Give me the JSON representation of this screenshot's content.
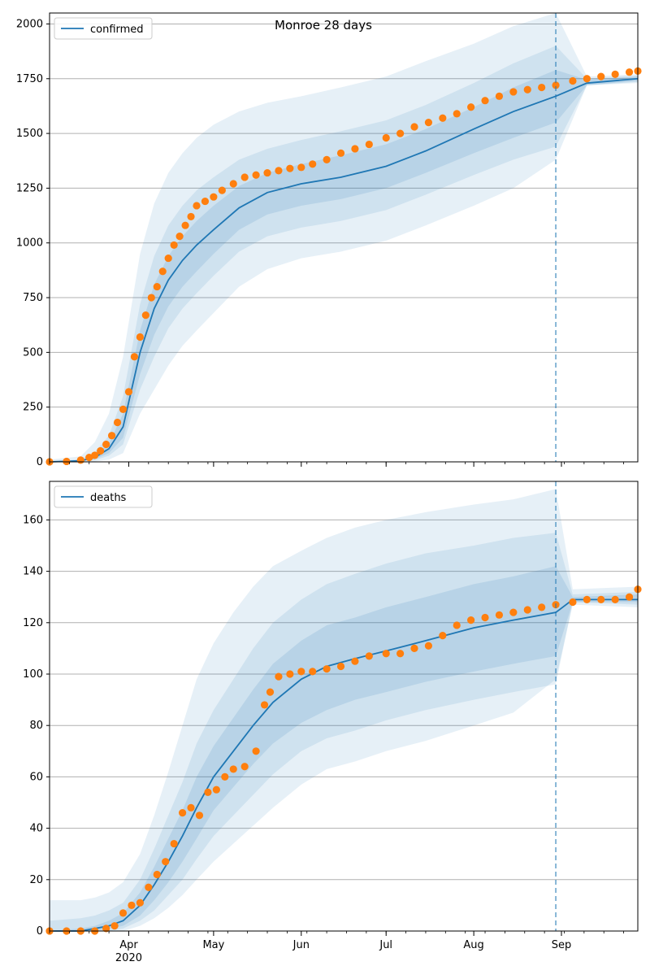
{
  "title": "Monroe 28 days",
  "colors": {
    "model_line": "#1f77b4",
    "observed": "#ff7f0e",
    "band": "#1f77b4",
    "grid": "#b0b0b0",
    "forecast_line": "#1f77b4"
  },
  "x_axis": {
    "date_range": [
      "2020-03-04",
      "2020-09-28"
    ],
    "month_ticks": [
      {
        "date": "2020-04-01",
        "label": "Apr",
        "sublabel": "2020"
      },
      {
        "date": "2020-05-01",
        "label": "May",
        "sublabel": ""
      },
      {
        "date": "2020-06-01",
        "label": "Jun",
        "sublabel": ""
      },
      {
        "date": "2020-07-01",
        "label": "Jul",
        "sublabel": ""
      },
      {
        "date": "2020-08-01",
        "label": "Aug",
        "sublabel": ""
      },
      {
        "date": "2020-09-01",
        "label": "Sep",
        "sublabel": ""
      }
    ],
    "forecast_start": "2020-08-30"
  },
  "chart_data": [
    {
      "type": "line",
      "series": [
        {
          "name": "confirmed",
          "role": "model median"
        },
        {
          "role": "observed",
          "marker": "circle"
        }
      ],
      "legend": {
        "label": "confirmed",
        "placement": "top-left"
      },
      "ylim": [
        0,
        2050
      ],
      "yticks": [
        0,
        250,
        500,
        750,
        1000,
        1250,
        1500,
        1750,
        2000
      ],
      "grid": "horizontal",
      "model": {
        "dates": [
          "2020-03-04",
          "2020-03-15",
          "2020-03-20",
          "2020-03-25",
          "2020-03-30",
          "2020-04-05",
          "2020-04-10",
          "2020-04-15",
          "2020-04-20",
          "2020-04-25",
          "2020-05-01",
          "2020-05-10",
          "2020-05-20",
          "2020-06-01",
          "2020-06-15",
          "2020-07-01",
          "2020-07-15",
          "2020-08-01",
          "2020-08-15",
          "2020-08-30",
          "2020-09-10",
          "2020-09-28"
        ],
        "median": [
          0,
          5,
          20,
          60,
          160,
          500,
          700,
          830,
          920,
          990,
          1060,
          1160,
          1230,
          1270,
          1300,
          1350,
          1420,
          1520,
          1600,
          1670,
          1730,
          1750
        ],
        "band_inner": [
          [
            0,
            3,
            12,
            40,
            110,
            400,
            580,
            710,
            800,
            870,
            950,
            1060,
            1130,
            1170,
            1200,
            1250,
            1320,
            1410,
            1480,
            1550,
            1720,
            1740
          ],
          [
            0,
            8,
            30,
            85,
            220,
            600,
            810,
            940,
            1030,
            1100,
            1170,
            1260,
            1320,
            1360,
            1400,
            1450,
            1520,
            1620,
            1710,
            1790,
            1745,
            1760
          ]
        ],
        "band_mid": [
          [
            0,
            2,
            8,
            28,
            80,
            330,
            480,
            610,
            700,
            770,
            850,
            960,
            1030,
            1070,
            1100,
            1150,
            1220,
            1310,
            1380,
            1440,
            1720,
            1735
          ],
          [
            0,
            12,
            45,
            120,
            300,
            720,
            940,
            1080,
            1170,
            1240,
            1300,
            1380,
            1430,
            1470,
            1510,
            1560,
            1630,
            1730,
            1820,
            1900,
            1750,
            1765
          ]
        ],
        "band_outer": [
          [
            0,
            0,
            2,
            10,
            40,
            220,
            330,
            440,
            530,
            600,
            680,
            800,
            880,
            930,
            960,
            1010,
            1080,
            1170,
            1250,
            1380,
            1720,
            1730
          ],
          [
            10,
            25,
            90,
            220,
            480,
            950,
            1180,
            1320,
            1410,
            1480,
            1540,
            1600,
            1640,
            1670,
            1710,
            1760,
            1830,
            1910,
            1990,
            2050,
            1760,
            1770
          ]
        ]
      },
      "observed": {
        "dates": [
          "2020-03-04",
          "2020-03-10",
          "2020-03-15",
          "2020-03-18",
          "2020-03-20",
          "2020-03-22",
          "2020-03-24",
          "2020-03-26",
          "2020-03-28",
          "2020-03-30",
          "2020-04-01",
          "2020-04-03",
          "2020-04-05",
          "2020-04-07",
          "2020-04-09",
          "2020-04-11",
          "2020-04-13",
          "2020-04-15",
          "2020-04-17",
          "2020-04-19",
          "2020-04-21",
          "2020-04-23",
          "2020-04-25",
          "2020-04-28",
          "2020-05-01",
          "2020-05-04",
          "2020-05-08",
          "2020-05-12",
          "2020-05-16",
          "2020-05-20",
          "2020-05-24",
          "2020-05-28",
          "2020-06-01",
          "2020-06-05",
          "2020-06-10",
          "2020-06-15",
          "2020-06-20",
          "2020-06-25",
          "2020-07-01",
          "2020-07-06",
          "2020-07-11",
          "2020-07-16",
          "2020-07-21",
          "2020-07-26",
          "2020-07-31",
          "2020-08-05",
          "2020-08-10",
          "2020-08-15",
          "2020-08-20",
          "2020-08-25",
          "2020-08-30",
          "2020-09-05",
          "2020-09-10",
          "2020-09-15",
          "2020-09-20",
          "2020-09-25",
          "2020-09-28"
        ],
        "values": [
          0,
          2,
          8,
          20,
          30,
          50,
          80,
          120,
          180,
          240,
          320,
          480,
          570,
          670,
          750,
          800,
          870,
          930,
          990,
          1030,
          1080,
          1120,
          1170,
          1190,
          1210,
          1240,
          1270,
          1300,
          1310,
          1320,
          1330,
          1340,
          1345,
          1360,
          1380,
          1410,
          1430,
          1450,
          1480,
          1500,
          1530,
          1550,
          1570,
          1590,
          1620,
          1650,
          1670,
          1690,
          1700,
          1710,
          1720,
          1740,
          1750,
          1760,
          1770,
          1780,
          1785
        ]
      }
    },
    {
      "type": "line",
      "series": [
        {
          "name": "deaths",
          "role": "model median"
        },
        {
          "role": "observed",
          "marker": "circle"
        }
      ],
      "legend": {
        "label": "deaths",
        "placement": "top-left"
      },
      "ylim": [
        0,
        175
      ],
      "yticks": [
        0,
        20,
        40,
        60,
        80,
        100,
        120,
        140,
        160
      ],
      "grid": "horizontal",
      "model": {
        "dates": [
          "2020-03-04",
          "2020-03-15",
          "2020-03-20",
          "2020-03-25",
          "2020-03-30",
          "2020-04-05",
          "2020-04-10",
          "2020-04-15",
          "2020-04-20",
          "2020-04-25",
          "2020-05-01",
          "2020-05-08",
          "2020-05-15",
          "2020-05-22",
          "2020-06-01",
          "2020-06-10",
          "2020-06-20",
          "2020-07-01",
          "2020-07-15",
          "2020-08-01",
          "2020-08-15",
          "2020-08-30",
          "2020-09-05",
          "2020-09-28"
        ],
        "median": [
          0,
          0,
          1,
          2,
          4,
          10,
          18,
          27,
          37,
          48,
          60,
          70,
          80,
          89,
          98,
          103,
          106,
          109,
          113,
          118,
          121,
          124,
          129,
          129
        ],
        "band_inner": [
          [
            0,
            0,
            0,
            1,
            2,
            6,
            12,
            19,
            27,
            36,
            47,
            56,
            65,
            73,
            81,
            86,
            90,
            93,
            97,
            101,
            104,
            107,
            128,
            128
          ],
          [
            0,
            1,
            2,
            4,
            7,
            15,
            25,
            36,
            47,
            60,
            72,
            83,
            94,
            104,
            113,
            119,
            122,
            126,
            130,
            135,
            138,
            142,
            130,
            131
          ]
        ],
        "band_mid": [
          [
            0,
            0,
            0,
            0,
            1,
            4,
            8,
            14,
            20,
            28,
            37,
            45,
            53,
            61,
            70,
            75,
            78,
            82,
            86,
            90,
            93,
            96,
            128,
            127
          ],
          [
            4,
            5,
            6,
            8,
            11,
            20,
            32,
            45,
            58,
            73,
            86,
            98,
            110,
            120,
            129,
            135,
            139,
            143,
            147,
            150,
            153,
            155,
            131,
            132
          ]
        ],
        "band_outer": [
          [
            0,
            0,
            0,
            0,
            0,
            2,
            5,
            9,
            14,
            20,
            27,
            34,
            41,
            48,
            57,
            63,
            66,
            70,
            74,
            80,
            85,
            98,
            127,
            126
          ],
          [
            12,
            12,
            13,
            15,
            19,
            30,
            45,
            62,
            80,
            98,
            112,
            124,
            134,
            142,
            148,
            153,
            157,
            160,
            163,
            166,
            168,
            172,
            133,
            134
          ]
        ]
      },
      "observed": {
        "dates": [
          "2020-03-04",
          "2020-03-10",
          "2020-03-15",
          "2020-03-20",
          "2020-03-24",
          "2020-03-27",
          "2020-03-30",
          "2020-04-02",
          "2020-04-05",
          "2020-04-08",
          "2020-04-11",
          "2020-04-14",
          "2020-04-17",
          "2020-04-20",
          "2020-04-23",
          "2020-04-26",
          "2020-04-29",
          "2020-05-02",
          "2020-05-05",
          "2020-05-08",
          "2020-05-12",
          "2020-05-16",
          "2020-05-19",
          "2020-05-21",
          "2020-05-24",
          "2020-05-28",
          "2020-06-01",
          "2020-06-05",
          "2020-06-10",
          "2020-06-15",
          "2020-06-20",
          "2020-06-25",
          "2020-07-01",
          "2020-07-06",
          "2020-07-11",
          "2020-07-16",
          "2020-07-21",
          "2020-07-26",
          "2020-07-31",
          "2020-08-05",
          "2020-08-10",
          "2020-08-15",
          "2020-08-20",
          "2020-08-25",
          "2020-08-30",
          "2020-09-05",
          "2020-09-10",
          "2020-09-15",
          "2020-09-20",
          "2020-09-25",
          "2020-09-28"
        ],
        "values": [
          0,
          0,
          0,
          0,
          1,
          2,
          7,
          10,
          11,
          17,
          22,
          27,
          34,
          46,
          48,
          45,
          54,
          55,
          60,
          63,
          64,
          70,
          88,
          93,
          99,
          100,
          101,
          101,
          102,
          103,
          105,
          107,
          108,
          108,
          110,
          111,
          115,
          119,
          121,
          122,
          123,
          124,
          125,
          126,
          127,
          128,
          129,
          129,
          129,
          130,
          133
        ]
      }
    }
  ]
}
